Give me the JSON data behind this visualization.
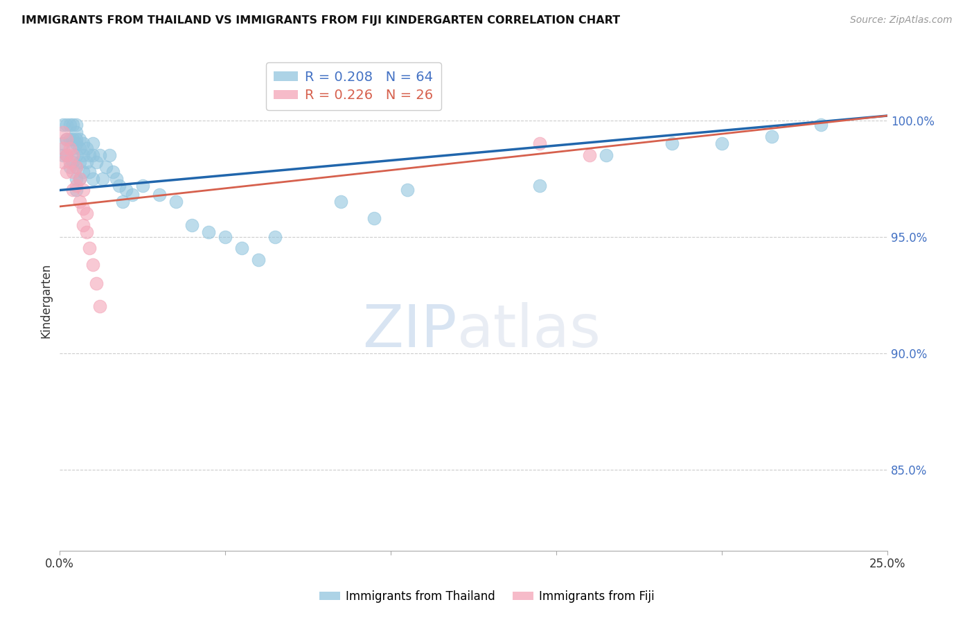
{
  "title": "IMMIGRANTS FROM THAILAND VS IMMIGRANTS FROM FIJI KINDERGARTEN CORRELATION CHART",
  "source": "Source: ZipAtlas.com",
  "ylabel": "Kindergarten",
  "ytick_labels": [
    "100.0%",
    "95.0%",
    "90.0%",
    "85.0%"
  ],
  "ytick_values": [
    1.0,
    0.95,
    0.9,
    0.85
  ],
  "xlim": [
    0.0,
    0.25
  ],
  "ylim": [
    0.815,
    1.03
  ],
  "legend_blue_r": "0.208",
  "legend_blue_n": "64",
  "legend_pink_r": "0.226",
  "legend_pink_n": "26",
  "blue_color": "#92c5de",
  "pink_color": "#f4a5b8",
  "trendline_blue": "#2166ac",
  "trendline_pink": "#d6604d",
  "watermark_zip": "ZIP",
  "watermark_atlas": "atlas",
  "blue_points_x": [
    0.001,
    0.001,
    0.001,
    0.002,
    0.002,
    0.002,
    0.003,
    0.003,
    0.003,
    0.004,
    0.004,
    0.004,
    0.004,
    0.005,
    0.005,
    0.005,
    0.005,
    0.005,
    0.005,
    0.005,
    0.005,
    0.006,
    0.006,
    0.006,
    0.006,
    0.007,
    0.007,
    0.007,
    0.008,
    0.008,
    0.009,
    0.009,
    0.01,
    0.01,
    0.01,
    0.011,
    0.012,
    0.013,
    0.014,
    0.015,
    0.016,
    0.017,
    0.018,
    0.019,
    0.02,
    0.022,
    0.025,
    0.03,
    0.035,
    0.04,
    0.045,
    0.05,
    0.055,
    0.06,
    0.065,
    0.085,
    0.095,
    0.105,
    0.145,
    0.165,
    0.185,
    0.2,
    0.215,
    0.23
  ],
  "blue_points_y": [
    0.998,
    0.99,
    0.985,
    0.998,
    0.992,
    0.985,
    0.998,
    0.992,
    0.98,
    0.998,
    0.992,
    0.988,
    0.982,
    0.998,
    0.995,
    0.992,
    0.99,
    0.985,
    0.98,
    0.975,
    0.97,
    0.992,
    0.988,
    0.982,
    0.975,
    0.99,
    0.985,
    0.978,
    0.988,
    0.982,
    0.985,
    0.978,
    0.99,
    0.985,
    0.975,
    0.982,
    0.985,
    0.975,
    0.98,
    0.985,
    0.978,
    0.975,
    0.972,
    0.965,
    0.97,
    0.968,
    0.972,
    0.968,
    0.965,
    0.955,
    0.952,
    0.95,
    0.945,
    0.94,
    0.95,
    0.965,
    0.958,
    0.97,
    0.972,
    0.985,
    0.99,
    0.99,
    0.993,
    0.998
  ],
  "pink_points_x": [
    0.001,
    0.001,
    0.001,
    0.002,
    0.002,
    0.002,
    0.003,
    0.003,
    0.004,
    0.004,
    0.004,
    0.005,
    0.005,
    0.006,
    0.006,
    0.007,
    0.007,
    0.007,
    0.008,
    0.008,
    0.009,
    0.01,
    0.011,
    0.012,
    0.145,
    0.16
  ],
  "pink_points_y": [
    0.995,
    0.988,
    0.982,
    0.992,
    0.985,
    0.978,
    0.988,
    0.982,
    0.985,
    0.978,
    0.97,
    0.98,
    0.972,
    0.975,
    0.965,
    0.97,
    0.962,
    0.955,
    0.96,
    0.952,
    0.945,
    0.938,
    0.93,
    0.92,
    0.99,
    0.985
  ],
  "blue_trendline_x": [
    0.0,
    0.25
  ],
  "blue_trendline_y": [
    0.97,
    1.002
  ],
  "pink_trendline_x": [
    0.0,
    0.25
  ],
  "pink_trendline_y": [
    0.963,
    1.002
  ]
}
